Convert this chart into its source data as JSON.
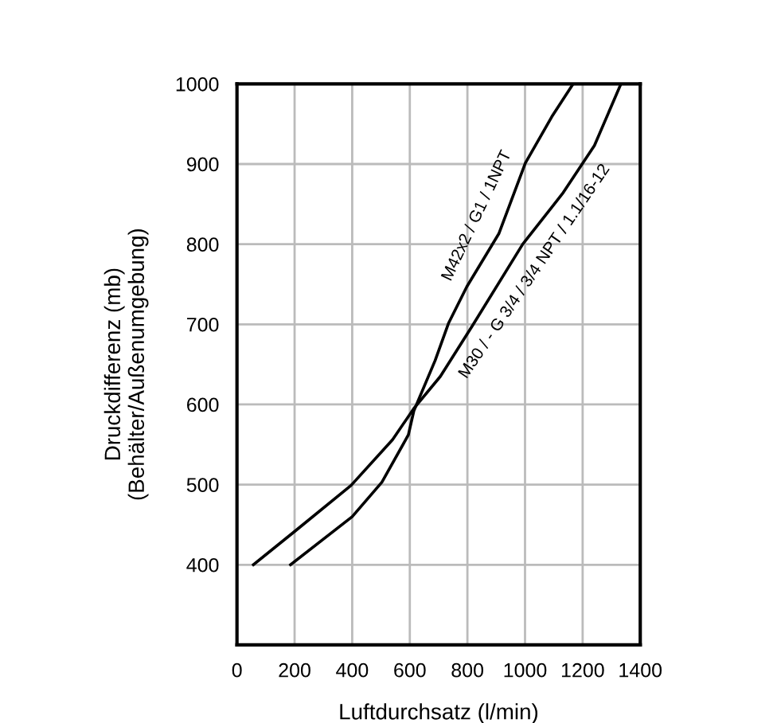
{
  "chart_data": {
    "type": "line",
    "xlabel": "Luftdurchsatz (l/min)",
    "ylabel": "Druckdifferenz (mb)\n(Behälter/Außenumgebung)",
    "xlim": [
      0,
      1400
    ],
    "ylim": [
      300,
      1000
    ],
    "xticks": [
      0,
      200,
      400,
      600,
      800,
      1000,
      1200,
      1400
    ],
    "yticks": [
      400,
      500,
      600,
      700,
      800,
      900,
      1000
    ],
    "grid": true,
    "legend": false,
    "line_style": "solid",
    "marker": "none",
    "series": [
      {
        "name": "M42x2 / G1 / 1NPT",
        "color": "#000000",
        "x": [
          186,
          400,
          503,
          595,
          614,
          688,
          734,
          798,
          909,
          1001,
          1093,
          1167
        ],
        "values": [
          400,
          460,
          503,
          562,
          592,
          655,
          701,
          747,
          813,
          901,
          959,
          1000
        ]
      },
      {
        "name": "M30 / - G 3/4 / 3/4 NPT / 1.1/16-12",
        "color": "#000000",
        "x": [
          57,
          205,
          396,
          540,
          614,
          706,
          817,
          992,
          1130,
          1241,
          1333
        ],
        "values": [
          400,
          443,
          499,
          556,
          595,
          635,
          698,
          800,
          863,
          923,
          1000
        ]
      }
    ]
  }
}
